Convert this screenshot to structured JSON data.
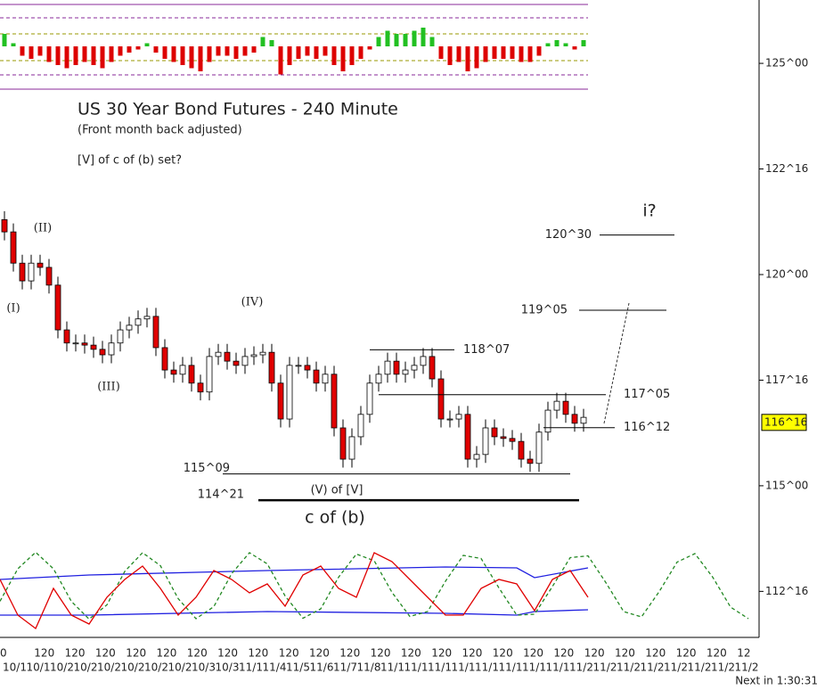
{
  "chart_data": {
    "type": "candlestick",
    "title": "US 30 Year Bond Futures - 240 Minute",
    "subtitle": "(Front month back adjusted)",
    "note": "[V] of c of (b) set?",
    "ylim": [
      111.41,
      126.5
    ],
    "yticks": [
      {
        "value": 125,
        "label": "125^00"
      },
      {
        "value": 122.5,
        "label": "122^16"
      },
      {
        "value": 120,
        "label": "120^00"
      },
      {
        "value": 117.5,
        "label": "117^16"
      },
      {
        "value": 115,
        "label": "115^00"
      },
      {
        "value": 112.5,
        "label": "112^16"
      }
    ],
    "last_price": {
      "value": 116.5,
      "label": "116^16"
    },
    "up_color": "#ffffff",
    "down_color": "#e00000",
    "open": [
      121.3,
      121.01,
      120.27,
      119.85,
      120.27,
      120.17,
      119.75,
      118.69,
      118.38,
      118.38,
      118.33,
      118.23,
      118.1,
      118.38,
      118.69,
      118.8,
      118.95,
      119.01,
      118.27,
      117.74,
      117.64,
      117.85,
      117.43,
      117.22,
      118.06,
      118.16,
      117.95,
      117.85,
      118.06,
      118.1,
      118.16,
      117.43,
      116.58,
      117.85,
      117.85,
      117.74,
      117.43,
      117.64,
      116.37,
      115.63,
      116.16,
      116.69,
      117.43,
      117.64,
      117.95,
      117.64,
      117.74,
      117.85,
      118.06,
      117.53,
      116.58,
      116.58,
      116.69,
      115.63,
      115.74,
      116.37,
      116.16,
      116.12,
      116.05,
      115.63,
      115.53,
      116.27,
      116.79,
      117.0,
      116.69,
      116.48
    ],
    "high": [
      121.5,
      121.21,
      120.47,
      120.47,
      120.47,
      120.37,
      119.95,
      118.89,
      118.58,
      118.58,
      118.53,
      118.43,
      118.58,
      118.89,
      119.0,
      119.15,
      119.21,
      119.21,
      118.47,
      117.94,
      118.05,
      118.05,
      117.63,
      118.26,
      118.36,
      118.36,
      118.15,
      118.26,
      118.3,
      118.36,
      118.36,
      117.63,
      118.05,
      118.05,
      118.05,
      117.94,
      117.84,
      117.84,
      116.57,
      116.36,
      116.89,
      117.63,
      117.84,
      118.15,
      118.15,
      117.94,
      118.05,
      118.26,
      118.26,
      117.73,
      116.78,
      116.89,
      116.89,
      115.94,
      116.57,
      116.57,
      116.36,
      116.32,
      116.25,
      115.83,
      116.47,
      116.99,
      117.2,
      117.2,
      116.89,
      116.82
    ],
    "low": [
      120.81,
      120.07,
      119.65,
      119.65,
      119.97,
      119.55,
      118.49,
      118.18,
      118.18,
      118.13,
      118.03,
      117.9,
      117.9,
      118.18,
      118.49,
      118.6,
      118.75,
      118.07,
      117.54,
      117.44,
      117.44,
      117.23,
      117.02,
      117.02,
      117.86,
      117.75,
      117.65,
      117.65,
      117.86,
      117.9,
      117.23,
      116.38,
      116.38,
      117.65,
      117.54,
      117.23,
      117.23,
      116.17,
      115.43,
      115.43,
      115.96,
      116.49,
      117.23,
      117.44,
      117.44,
      117.44,
      117.54,
      117.65,
      117.33,
      116.38,
      116.38,
      116.38,
      115.43,
      115.43,
      115.54,
      115.96,
      115.92,
      115.85,
      115.43,
      115.33,
      115.33,
      116.07,
      116.59,
      116.49,
      116.28,
      116.28
    ],
    "close": [
      121.01,
      120.27,
      119.85,
      120.27,
      120.17,
      119.75,
      118.69,
      118.38,
      118.38,
      118.33,
      118.23,
      118.1,
      118.38,
      118.69,
      118.8,
      118.95,
      119.01,
      118.27,
      117.74,
      117.64,
      117.85,
      117.43,
      117.22,
      118.06,
      118.16,
      117.95,
      117.85,
      118.06,
      118.1,
      118.16,
      117.43,
      116.58,
      117.85,
      117.85,
      117.74,
      117.43,
      117.64,
      116.37,
      115.63,
      116.16,
      116.69,
      117.43,
      117.64,
      117.95,
      117.64,
      117.74,
      117.85,
      118.06,
      117.53,
      116.58,
      116.58,
      116.69,
      115.63,
      115.74,
      116.37,
      116.16,
      116.12,
      116.05,
      115.63,
      115.53,
      116.27,
      116.79,
      117.0,
      116.69,
      116.48,
      116.62
    ],
    "levels": [
      {
        "value": 120.9375,
        "label": "120^30"
      },
      {
        "value": 119.15625,
        "label": "119^05"
      },
      {
        "value": 118.21875,
        "label": "118^07"
      },
      {
        "value": 117.15625,
        "label": "117^05"
      },
      {
        "value": 116.375,
        "label": "116^12"
      },
      {
        "value": 115.28125,
        "label": "115^09"
      },
      {
        "value": 114.65625,
        "label": "114^21"
      }
    ],
    "wave_labels": [
      "(I)",
      "(II)",
      "(III)",
      "(IV)",
      "(V) of [V]",
      "c of (b)",
      "i?"
    ],
    "x_labels_top": [
      "0",
      "120",
      "120",
      "120",
      "120",
      "120",
      "120",
      "120",
      "120",
      "120",
      "120",
      "120",
      "120",
      "120",
      "120",
      "120",
      "120",
      "120",
      "120",
      "120",
      "120",
      "120",
      "120",
      "120",
      "12"
    ],
    "x_labels_bottom": [
      "10/1",
      "10/1",
      "10/2",
      "10/2",
      "10/2",
      "10/2",
      "10/2",
      "10/2",
      "10/3",
      "10/3",
      "11/1",
      "11/4",
      "11/5",
      "11/6",
      "11/7",
      "11/8",
      "11/1",
      "11/1",
      "11/1",
      "11/1",
      "11/1",
      "11/1",
      "11/1",
      "11/1",
      "11/2",
      "11/2",
      "11/2",
      "11/2",
      "11/2",
      "11/2",
      "11/2",
      "11/2"
    ],
    "countdown": "Next in 1:30:31"
  },
  "top_indicator": {
    "type": "bar",
    "ylim": [
      -1,
      1
    ],
    "pos_color": "#22c022",
    "neg_color": "#dd0000",
    "values": [
      0.4,
      0.1,
      -0.3,
      -0.4,
      -0.3,
      -0.5,
      -0.6,
      -0.7,
      -0.6,
      -0.5,
      -0.6,
      -0.7,
      -0.5,
      -0.3,
      -0.2,
      -0.1,
      0.1,
      -0.2,
      -0.4,
      -0.5,
      -0.6,
      -0.7,
      -0.8,
      -0.5,
      -0.3,
      -0.3,
      -0.4,
      -0.3,
      -0.2,
      0.3,
      0.2,
      -0.9,
      -0.6,
      -0.4,
      -0.3,
      -0.4,
      -0.3,
      -0.6,
      -0.8,
      -0.6,
      -0.4,
      -0.1,
      0.3,
      0.5,
      0.4,
      0.4,
      0.5,
      0.6,
      0.3,
      -0.4,
      -0.6,
      -0.5,
      -0.8,
      -0.7,
      -0.5,
      -0.4,
      -0.4,
      -0.4,
      -0.5,
      -0.5,
      -0.3,
      0.1,
      0.2,
      0.1,
      -0.1,
      0.2
    ]
  },
  "bottom_indicator": {
    "type": "line",
    "ylim": [
      -1,
      1
    ],
    "series": [
      {
        "color": "#2020e0",
        "x": [
          0,
          10,
          30,
          50,
          58,
          60,
          66
        ],
        "values": [
          0.14,
          0.24,
          0.34,
          0.42,
          0.4,
          0.18,
          0.4
        ]
      },
      {
        "color": "#2020e0",
        "x": [
          0,
          10,
          30,
          50,
          58,
          60,
          66
        ],
        "values": [
          -0.66,
          -0.66,
          -0.58,
          -0.62,
          -0.66,
          -0.58,
          -0.54
        ]
      },
      {
        "color": "#228822",
        "dashed": true,
        "x": [
          0,
          2,
          4,
          6,
          8,
          10,
          12,
          14,
          16,
          18,
          20,
          22,
          24,
          26,
          28,
          30,
          32,
          34,
          36,
          38,
          40,
          42,
          44,
          46,
          48,
          50,
          52,
          54,
          56,
          58,
          60,
          62,
          64,
          66,
          68,
          70,
          72,
          74,
          76,
          78,
          80,
          82,
          84
        ],
        "values": [
          -0.35,
          0.38,
          0.75,
          0.38,
          -0.35,
          -0.75,
          -0.43,
          0.32,
          0.74,
          0.45,
          -0.29,
          -0.74,
          -0.47,
          0.27,
          0.74,
          0.49,
          -0.23,
          -0.73,
          -0.52,
          0.19,
          0.71,
          0.56,
          -0.15,
          -0.69,
          -0.58,
          0.1,
          0.68,
          0.61,
          -0.05,
          -0.66,
          -0.64,
          -0.02,
          0.63,
          0.67,
          0.07,
          -0.58,
          -0.7,
          -0.13,
          0.53,
          0.72,
          0.19,
          -0.48,
          -0.74
        ]
      },
      {
        "color": "#e00000",
        "x": [
          0,
          2,
          4,
          6,
          8,
          10,
          12,
          14,
          16,
          18,
          20,
          22,
          24,
          26,
          28,
          30,
          32,
          34,
          36,
          38,
          40,
          42,
          44,
          46,
          48,
          50,
          52,
          54,
          56,
          58,
          60,
          62,
          64,
          66
        ],
        "values": [
          0.14,
          -0.66,
          -0.96,
          -0.06,
          -0.66,
          -0.86,
          -0.26,
          0.14,
          0.44,
          -0.06,
          -0.66,
          -0.26,
          0.34,
          0.14,
          -0.16,
          0.04,
          -0.46,
          0.24,
          0.44,
          -0.06,
          -0.26,
          0.74,
          0.54,
          0.14,
          -0.26,
          -0.66,
          -0.66,
          -0.06,
          0.14,
          0.04,
          -0.56,
          0.14,
          0.34,
          -0.26
        ]
      }
    ]
  }
}
